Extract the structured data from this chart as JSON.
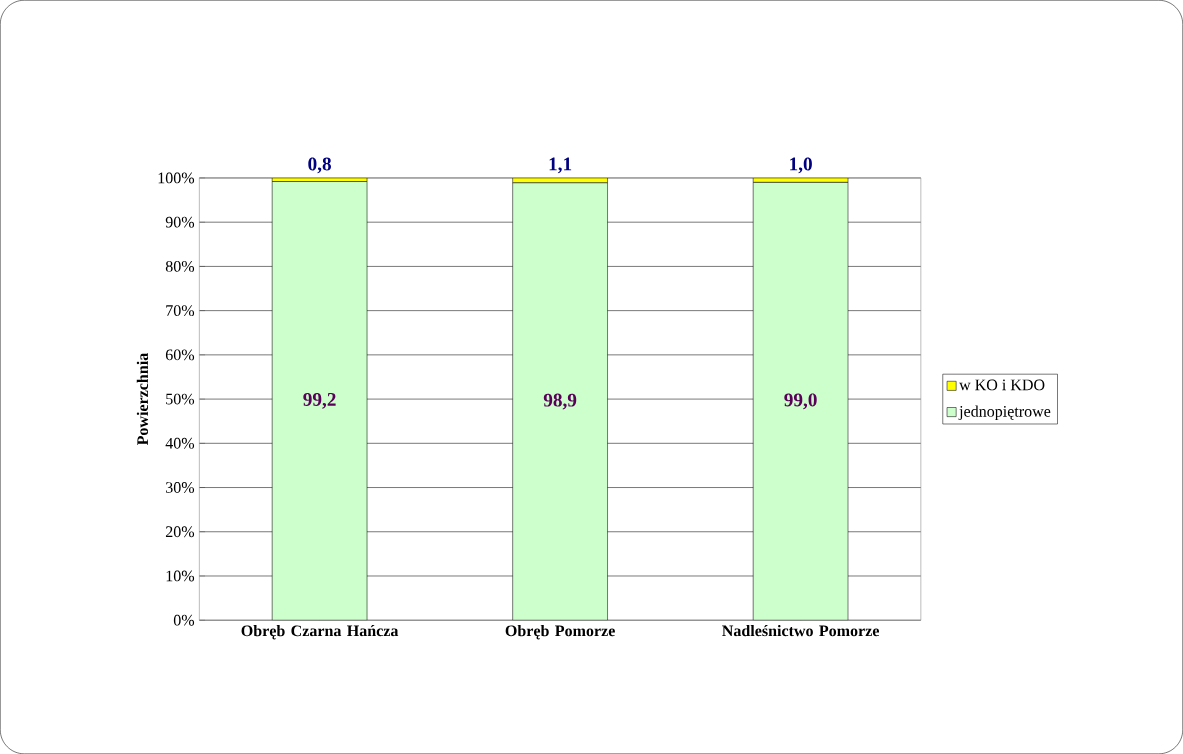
{
  "chart_data": {
    "type": "bar",
    "stacked": true,
    "ylabel": "Powierzchnia",
    "categories": [
      "Obręb  Czarna Hańcza",
      "Obręb  Pomorze",
      "Nadleśnictwo Pomorze"
    ],
    "series": [
      {
        "name": "jednopiętrowe",
        "color": "#ccffcc",
        "values": [
          99.2,
          98.9,
          99.0
        ],
        "value_labels": [
          "99,2",
          "98,9",
          "99,0"
        ]
      },
      {
        "name": "w  KO i KDO",
        "color": "#ffff00",
        "values": [
          0.8,
          1.1,
          1.0
        ],
        "value_labels": [
          "0,8",
          "1,1",
          "1,0"
        ]
      }
    ],
    "ylim": [
      0,
      100
    ],
    "yticks": [
      {
        "value": 0,
        "label": "0%"
      },
      {
        "value": 10,
        "label": "10%"
      },
      {
        "value": 20,
        "label": "20%"
      },
      {
        "value": 30,
        "label": "30%"
      },
      {
        "value": 40,
        "label": "40%"
      },
      {
        "value": 50,
        "label": "50%"
      },
      {
        "value": 60,
        "label": "60%"
      },
      {
        "value": 70,
        "label": "70%"
      },
      {
        "value": 80,
        "label": "80%"
      },
      {
        "value": 90,
        "label": "90%"
      },
      {
        "value": 100,
        "label": "100%"
      }
    ],
    "grid": "y",
    "legend": "right"
  }
}
